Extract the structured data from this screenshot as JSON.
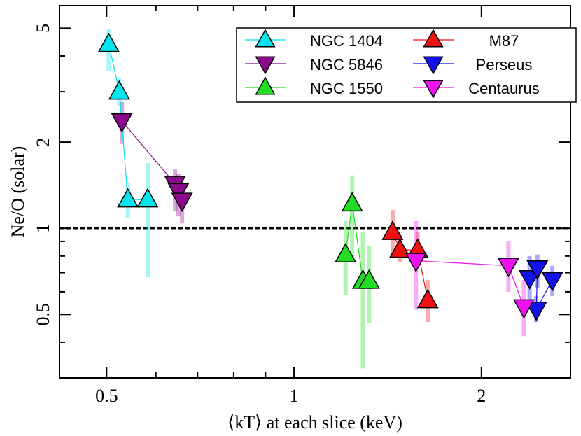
{
  "chart_data": {
    "type": "scatter",
    "xlabel": "⟨kT⟩ at each slice (keV)",
    "ylabel": "Ne/O (solar)",
    "xscale": "log",
    "yscale": "log",
    "xlim": [
      0.42,
      2.78
    ],
    "ylim": [
      0.3,
      6.0
    ],
    "xticks": [
      0.5,
      1,
      2
    ],
    "yticks": [
      0.5,
      1,
      2,
      5
    ],
    "xminor": [
      0.6,
      0.7,
      0.8,
      0.9
    ],
    "yminor": [
      0.3,
      0.4,
      0.6,
      0.7,
      0.8,
      0.9,
      3,
      4,
      6
    ],
    "hline": 1,
    "legend": "upper right",
    "series": [
      {
        "name": "NGC 1404",
        "color": "#00e5ee",
        "marker": "up",
        "x": [
          0.504,
          0.524,
          0.541,
          0.582
        ],
        "y": [
          4.4,
          3.0,
          1.26,
          1.26
        ],
        "yerr": [
          [
            3.55,
            4.98
          ],
          [
            2.68,
            3.36
          ],
          [
            1.09,
            1.44
          ],
          [
            0.674,
            1.69
          ]
        ]
      },
      {
        "name": "NGC 5846",
        "color": "#8b0a8b",
        "marker": "down",
        "x": [
          0.529,
          0.644,
          0.652,
          0.661
        ],
        "y": [
          2.37,
          1.43,
          1.35,
          1.25
        ],
        "yerr": [
          [
            1.97,
            2.76
          ],
          [
            1.15,
            1.61
          ],
          [
            1.1,
            1.55
          ],
          [
            1.04,
            1.4
          ]
        ]
      },
      {
        "name": "NGC 1550",
        "color": "#22dd22",
        "marker": "up",
        "x": [
          1.21,
          1.24,
          1.29,
          1.32
        ],
        "y": [
          0.81,
          1.22,
          0.655,
          0.655
        ],
        "yerr": [
          [
            0.585,
            1.06
          ],
          [
            0.776,
            1.53
          ],
          [
            0.324,
            0.972
          ],
          [
            0.467,
            0.869
          ]
        ]
      },
      {
        "name": "M87",
        "color": "#ee1111",
        "marker": "up",
        "x": [
          1.44,
          1.48,
          1.58,
          1.64
        ],
        "y": [
          0.97,
          0.84,
          0.84,
          0.56
        ],
        "yerr": [
          [
            0.8,
            1.16
          ],
          [
            0.76,
            0.95
          ],
          [
            0.76,
            0.97
          ],
          [
            0.47,
            0.66
          ]
        ]
      },
      {
        "name": "Perseus",
        "color": "#1111ee",
        "marker": "down",
        "x": [
          2.39,
          2.46,
          2.45,
          2.6
        ],
        "y": [
          0.67,
          0.725,
          0.52,
          0.66
        ],
        "yerr": [
          [
            0.56,
            0.8
          ],
          [
            0.62,
            0.81
          ],
          [
            0.47,
            0.58
          ],
          [
            0.58,
            0.74
          ]
        ]
      },
      {
        "name": "Centaurus",
        "color": "#ee11ee",
        "marker": "down",
        "x": [
          1.57,
          2.21,
          2.34
        ],
        "y": [
          0.77,
          0.74,
          0.53
        ],
        "yerr": [
          [
            0.52,
            1.06
          ],
          [
            0.6,
            0.9
          ],
          [
            0.42,
            0.66
          ]
        ]
      }
    ]
  }
}
